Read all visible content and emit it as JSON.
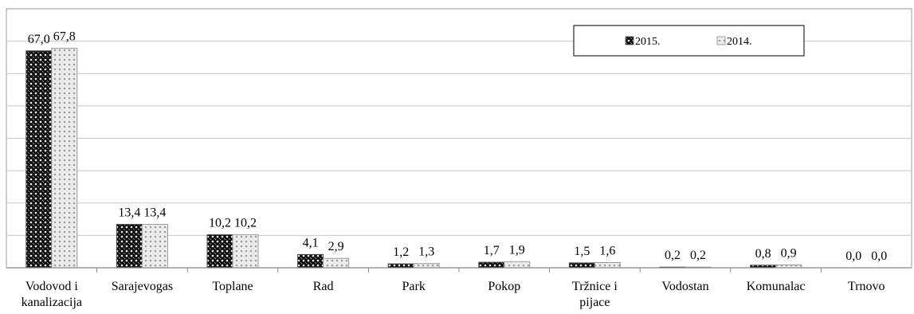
{
  "chart_data": {
    "type": "bar",
    "categories": [
      [
        "Vodovod i",
        "kanalizacija"
      ],
      [
        "Sarajevogas"
      ],
      [
        "Toplane"
      ],
      [
        "Rad"
      ],
      [
        "Park"
      ],
      [
        "Pokop"
      ],
      [
        "Tržnice i",
        "pijace"
      ],
      [
        "Vodostan"
      ],
      [
        "Komunalac"
      ],
      [
        "Trnovo"
      ]
    ],
    "series": [
      {
        "name": "2015.",
        "values": [
          67.0,
          13.4,
          10.2,
          4.1,
          1.2,
          1.7,
          1.5,
          0.2,
          0.8,
          0.0
        ],
        "labels": [
          "67,0",
          "13,4",
          "10,2",
          "4,1",
          "1,2",
          "1,7",
          "1,5",
          "0,2",
          "0,8",
          "0,0"
        ],
        "pattern": "dark"
      },
      {
        "name": "2014.",
        "values": [
          67.8,
          13.4,
          10.2,
          2.9,
          1.3,
          1.9,
          1.6,
          0.2,
          0.9,
          0.0
        ],
        "labels": [
          "67,8",
          "13,4",
          "10,2",
          "2,9",
          "1,3",
          "1,9",
          "1,6",
          "0,2",
          "0,9",
          "0,0"
        ],
        "pattern": "light"
      }
    ],
    "ylim": [
      0,
      80
    ],
    "grid": true,
    "legend": "top-right"
  }
}
